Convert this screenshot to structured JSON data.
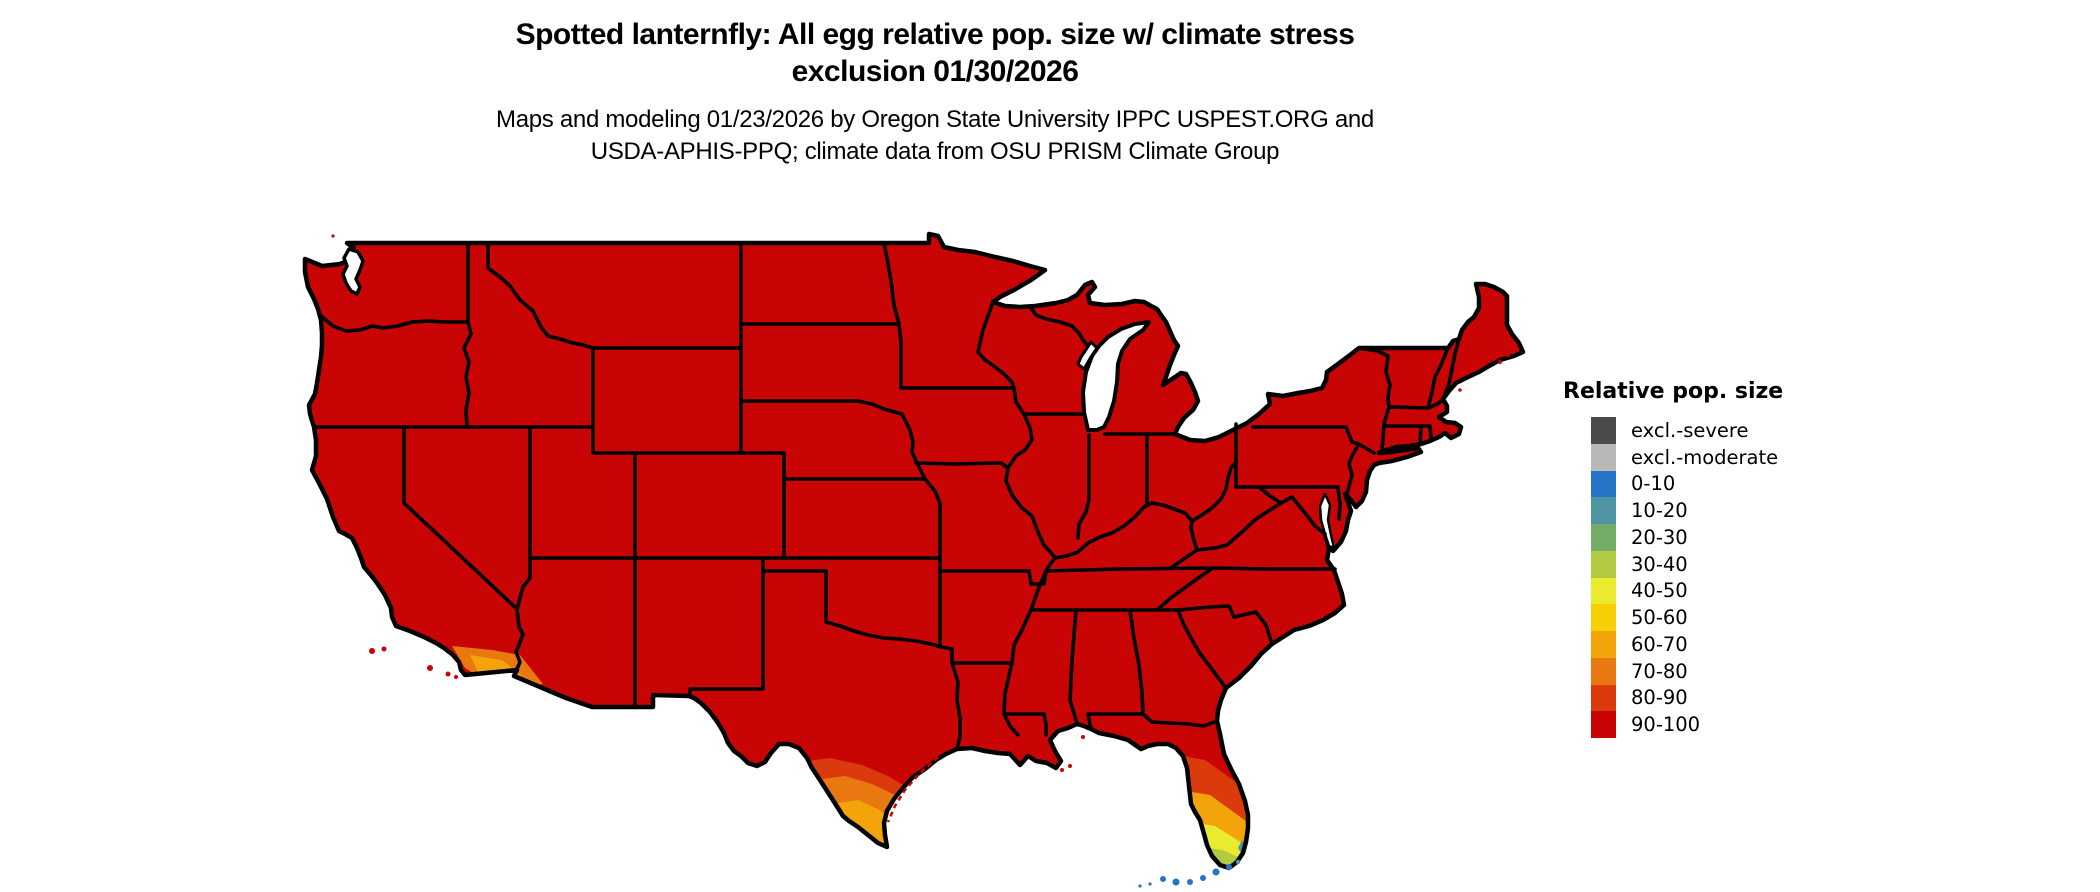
{
  "header": {
    "title_line1": "Spotted lanternfly: All egg relative pop. size w/ climate stress",
    "title_line2": "exclusion 01/30/2026",
    "subtitle_line1": "Maps and modeling 01/23/2026 by Oregon State University IPPC USPEST.ORG and",
    "subtitle_line2": "USDA-APHIS-PPQ; climate data from OSU PRISM Climate Group"
  },
  "legend": {
    "title": "Relative pop. size",
    "items": [
      {
        "label": "excl.-severe",
        "color": "#4a4a4a"
      },
      {
        "label": "excl.-moderate",
        "color": "#b8b8b8"
      },
      {
        "label": "0-10",
        "color": "#2474c8"
      },
      {
        "label": "10-20",
        "color": "#4e94a2"
      },
      {
        "label": "20-30",
        "color": "#72ac66"
      },
      {
        "label": "30-40",
        "color": "#b2ca42"
      },
      {
        "label": "40-50",
        "color": "#eaea2e"
      },
      {
        "label": "50-60",
        "color": "#f8ce04"
      },
      {
        "label": "60-70",
        "color": "#f2a40a"
      },
      {
        "label": "70-80",
        "color": "#e8780f"
      },
      {
        "label": "80-90",
        "color": "#da3a0c"
      },
      {
        "label": "90-100",
        "color": "#c80404"
      }
    ]
  },
  "map": {
    "region": "Contiguous United States",
    "base_class": "90-100",
    "base_color": "#c80404",
    "border_color": "#000000",
    "gradient_regions": [
      {
        "name": "South Texas (Rio Grande Valley)",
        "classes": [
          "80-90",
          "70-80",
          "60-70",
          "40-50"
        ]
      },
      {
        "name": "Central and South Florida",
        "classes": [
          "80-90",
          "60-70",
          "40-50",
          "30-40",
          "20-30",
          "10-20"
        ]
      },
      {
        "name": "Southern California coast",
        "classes": [
          "80-90",
          "70-80",
          "60-70"
        ]
      },
      {
        "name": "Florida Keys",
        "classes": [
          "0-10",
          "10-20"
        ]
      }
    ]
  }
}
